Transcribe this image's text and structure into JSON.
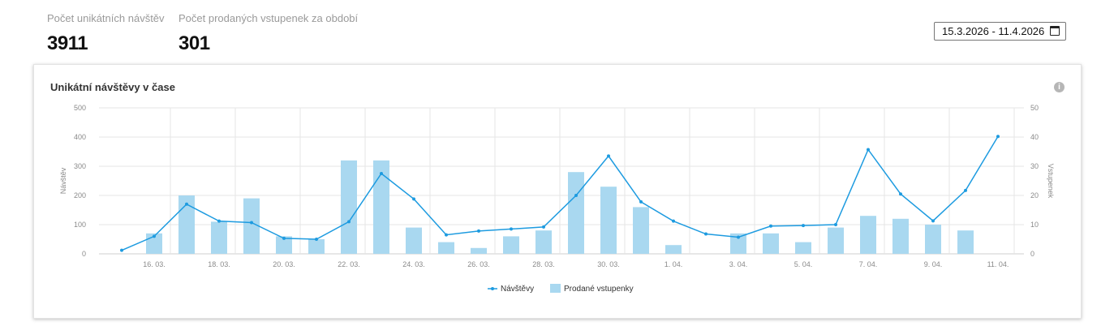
{
  "stats": {
    "visits": {
      "label": "Počet unikátních návštěv",
      "value": "3911"
    },
    "tickets": {
      "label": "Počet prodaných vstupenek za období",
      "value": "301"
    }
  },
  "date_range": {
    "value": "15.3.2026 - 11.4.2026",
    "icon": "calendar-icon"
  },
  "card": {
    "title": "Unikátní návštěvy v čase",
    "info_icon": "i"
  },
  "chart_data": {
    "type": "bar+line",
    "title": "Unikátní návštěvy v čase",
    "x": [
      "15. 03.",
      "16. 03.",
      "17. 03.",
      "18. 03.",
      "19. 03.",
      "20. 03.",
      "21. 03.",
      "22. 03.",
      "23. 03.",
      "24. 03.",
      "25. 03.",
      "26. 03.",
      "27. 03.",
      "28. 03.",
      "29. 03.",
      "30. 03.",
      "31. 03.",
      "1. 04.",
      "2. 04.",
      "3. 04.",
      "4. 04.",
      "5. 04.",
      "6. 04.",
      "7. 04.",
      "8. 04.",
      "9. 04.",
      "10. 04.",
      "11. 04."
    ],
    "x_tick_labels": [
      "16. 03.",
      "18. 03.",
      "20. 03.",
      "22. 03.",
      "24. 03.",
      "26. 03.",
      "28. 03.",
      "30. 03.",
      "1. 04.",
      "3. 04.",
      "5. 04.",
      "7. 04.",
      "9. 04.",
      "11. 04."
    ],
    "series": [
      {
        "name": "Návštěvy",
        "type": "line",
        "axis": "left",
        "color": "#1d9be0",
        "values": [
          12,
          60,
          170,
          112,
          107,
          53,
          50,
          110,
          275,
          188,
          65,
          78,
          85,
          92,
          200,
          335,
          178,
          112,
          68,
          57,
          95,
          97,
          100,
          357,
          205,
          113,
          217,
          402
        ]
      },
      {
        "name": "Prodané vstupenky",
        "type": "bar",
        "axis": "right",
        "color": "#a9d8f0",
        "values": [
          0,
          7,
          20,
          11,
          19,
          6,
          5,
          32,
          32,
          9,
          4,
          2,
          6,
          8,
          28,
          23,
          16,
          3,
          0,
          7,
          7,
          4,
          9,
          13,
          12,
          10,
          8,
          0
        ]
      }
    ],
    "y_left": {
      "label": "Návštěv",
      "min": 0,
      "max": 500,
      "ticks": [
        "0",
        "100",
        "200",
        "300",
        "400",
        "500"
      ]
    },
    "y_right": {
      "label": "Vstupenek",
      "min": 0,
      "max": 50,
      "ticks": [
        "0",
        "10",
        "20",
        "30",
        "40",
        "50"
      ]
    },
    "grid": true,
    "legend": "bottom-center"
  }
}
